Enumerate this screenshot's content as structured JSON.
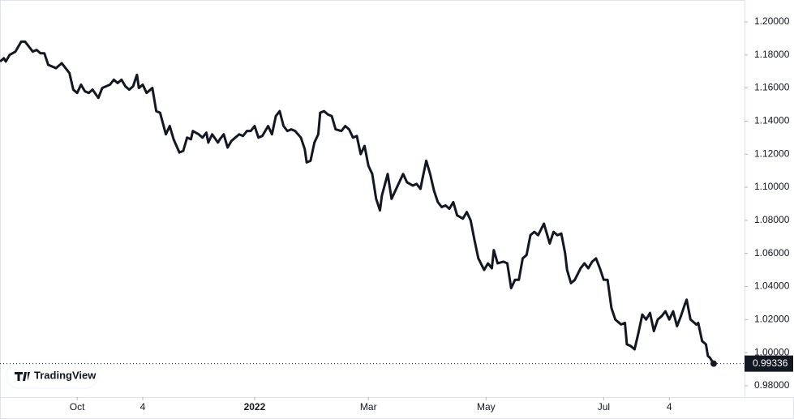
{
  "chart_data": {
    "type": "line",
    "watermark": "TradingView",
    "color": "#131722",
    "x": [
      -40,
      -38,
      -37,
      -35,
      -32,
      -29,
      -27,
      -25,
      -23,
      -21,
      -19,
      -17,
      -15,
      -13,
      -11,
      -8,
      -6,
      -4,
      -2,
      0,
      2,
      4,
      6,
      8,
      11,
      13,
      15,
      17,
      19,
      21,
      23,
      25,
      27,
      29,
      31,
      32,
      34,
      36,
      39,
      41,
      43,
      46,
      48,
      50,
      53,
      55,
      57,
      59,
      60,
      63,
      65,
      67,
      68,
      70,
      73,
      74,
      76,
      78,
      80,
      82,
      84,
      86,
      88,
      90,
      92,
      94,
      96,
      99,
      101,
      103,
      105,
      107,
      109,
      111,
      113,
      116,
      118,
      119,
      121,
      123,
      125,
      126,
      128,
      130,
      132,
      134,
      137,
      139,
      141,
      143,
      145,
      147,
      149,
      151,
      153,
      155,
      157,
      158,
      161,
      163,
      165,
      167,
      169,
      171,
      174,
      176,
      178,
      179,
      181,
      183,
      185,
      187,
      189,
      191,
      193,
      195,
      197,
      200,
      202,
      204,
      206,
      208,
      211,
      213,
      215,
      216,
      218,
      221,
      223,
      225,
      227,
      229,
      231,
      233,
      235,
      237,
      239,
      242,
      245,
      247,
      249,
      251,
      253,
      254,
      256,
      258,
      261,
      263,
      265,
      267,
      269,
      271,
      273,
      275,
      277,
      279,
      282,
      284,
      285,
      287,
      289,
      291,
      293,
      295,
      297,
      299,
      301,
      303,
      305,
      307,
      309,
      311,
      313,
      315,
      316,
      318,
      321,
      322,
      324,
      326,
      327,
      328,
      330
    ],
    "values": [
      1.176,
      1.178,
      1.176,
      1.18,
      1.182,
      1.188,
      1.188,
      1.185,
      1.182,
      1.183,
      1.181,
      1.181,
      1.174,
      1.173,
      1.172,
      1.175,
      1.172,
      1.169,
      1.159,
      1.157,
      1.162,
      1.158,
      1.157,
      1.159,
      1.154,
      1.16,
      1.161,
      1.162,
      1.165,
      1.163,
      1.165,
      1.161,
      1.159,
      1.161,
      1.168,
      1.16,
      1.162,
      1.157,
      1.16,
      1.146,
      1.145,
      1.132,
      1.137,
      1.129,
      1.121,
      1.122,
      1.13,
      1.129,
      1.134,
      1.132,
      1.13,
      1.133,
      1.127,
      1.132,
      1.127,
      1.129,
      1.132,
      1.124,
      1.128,
      1.13,
      1.132,
      1.131,
      1.134,
      1.134,
      1.137,
      1.13,
      1.131,
      1.137,
      1.132,
      1.143,
      1.146,
      1.137,
      1.134,
      1.135,
      1.134,
      1.13,
      1.123,
      1.115,
      1.116,
      1.127,
      1.132,
      1.145,
      1.146,
      1.144,
      1.143,
      1.135,
      1.134,
      1.137,
      1.135,
      1.13,
      1.131,
      1.12,
      1.125,
      1.113,
      1.108,
      1.093,
      1.086,
      1.095,
      1.108,
      1.093,
      1.098,
      1.103,
      1.108,
      1.103,
      1.101,
      1.102,
      1.099,
      1.105,
      1.116,
      1.108,
      1.098,
      1.091,
      1.088,
      1.089,
      1.087,
      1.091,
      1.083,
      1.081,
      1.085,
      1.08,
      1.068,
      1.057,
      1.05,
      1.054,
      1.051,
      1.062,
      1.054,
      1.055,
      1.054,
      1.039,
      1.044,
      1.044,
      1.057,
      1.059,
      1.071,
      1.073,
      1.071,
      1.078,
      1.066,
      1.073,
      1.071,
      1.072,
      1.06,
      1.05,
      1.042,
      1.044,
      1.051,
      1.054,
      1.051,
      1.055,
      1.057,
      1.051,
      1.044,
      1.044,
      1.027,
      1.02,
      1.017,
      1.018,
      1.005,
      1.004,
      1.002,
      1.012,
      1.023,
      1.02,
      1.024,
      1.013,
      1.02,
      1.022,
      1.025,
      1.02,
      1.025,
      1.016,
      1.022,
      1.029,
      1.032,
      1.02,
      1.017,
      1.018,
      1.007,
      1.005,
      0.998,
      0.997,
      0.99336
    ],
    "xlim": [
      -40,
      346
    ],
    "xticks": [
      {
        "value": 0,
        "label": "Oct"
      },
      {
        "value": 34,
        "label": "4"
      },
      {
        "value": 92,
        "label": "2022",
        "bold": true
      },
      {
        "value": 151,
        "label": "Mar"
      },
      {
        "value": 212,
        "label": "May"
      },
      {
        "value": 273,
        "label": "Jul"
      },
      {
        "value": 307,
        "label": "4"
      }
    ],
    "ylim": [
      0.9731,
      1.2132
    ],
    "yticks": [
      {
        "value": 0.98,
        "label": "0.98000"
      },
      {
        "value": 1.0,
        "label": "1.00000"
      },
      {
        "value": 1.02,
        "label": "1.02000"
      },
      {
        "value": 1.04,
        "label": "1.04000"
      },
      {
        "value": 1.06,
        "label": "1.06000"
      },
      {
        "value": 1.08,
        "label": "1.08000"
      },
      {
        "value": 1.1,
        "label": "1.10000"
      },
      {
        "value": 1.12,
        "label": "1.12000"
      },
      {
        "value": 1.14,
        "label": "1.14000"
      },
      {
        "value": 1.16,
        "label": "1.16000"
      },
      {
        "value": 1.18,
        "label": "1.18000"
      },
      {
        "value": 1.2,
        "label": "1.20000"
      }
    ],
    "grid": false
  }
}
